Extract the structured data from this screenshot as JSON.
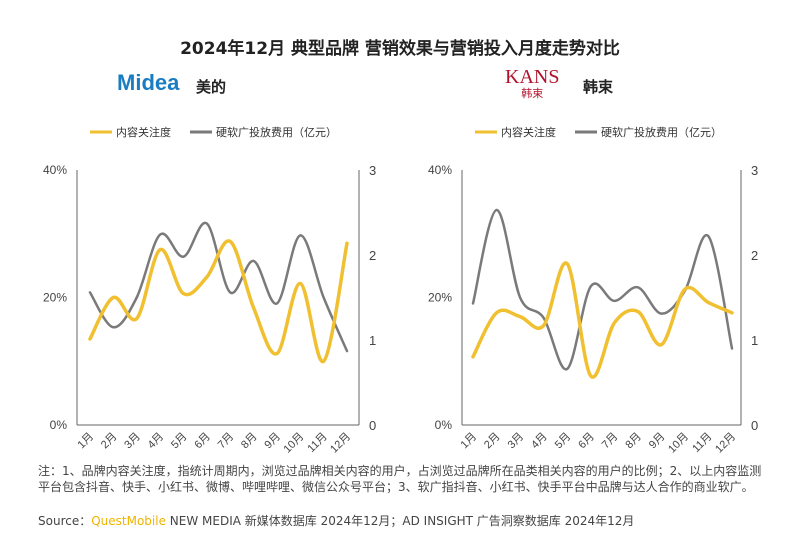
{
  "title": "2024年12月 典型品牌 营销效果与营销投入月度走势对比",
  "colors": {
    "attention": "#f0c030",
    "spend": "#7a7a7a",
    "midea": "#1a7dc2",
    "kans": "#b2122a"
  },
  "chart_data": [
    {
      "type": "line",
      "brand": "美的",
      "logo": "Midea",
      "categories": [
        "1月",
        "2月",
        "3月",
        "4月",
        "5月",
        "6月",
        "7月",
        "8月",
        "9月",
        "10月",
        "11月",
        "12月"
      ],
      "y_left": {
        "ticks": [
          "0%",
          "20%",
          "40%"
        ],
        "range": [
          0,
          40
        ]
      },
      "y_right": {
        "ticks": [
          "0",
          "1",
          "2",
          "3"
        ],
        "range": [
          0,
          3
        ]
      },
      "legend": [
        "内容关注度",
        "硬软广投放费用（亿元）"
      ],
      "series": [
        {
          "name": "内容关注度",
          "axis": "left",
          "values": [
            13.5,
            20,
            16.7,
            27.5,
            20.6,
            23.2,
            28.8,
            18.4,
            11.2,
            22.2,
            10,
            28.5
          ]
        },
        {
          "name": "硬软广投放费用（亿元）",
          "axis": "right",
          "values": [
            1.56,
            1.15,
            1.5,
            2.24,
            1.98,
            2.37,
            1.56,
            1.93,
            1.43,
            2.23,
            1.5,
            0.87
          ]
        }
      ]
    },
    {
      "type": "line",
      "brand": "韩束",
      "logo": "KANS",
      "logo_sub": "韩束",
      "categories": [
        "1月",
        "2月",
        "3月",
        "4月",
        "5月",
        "6月",
        "7月",
        "8月",
        "9月",
        "10月",
        "11月",
        "12月"
      ],
      "y_left": {
        "ticks": [
          "0%",
          "20%",
          "40%"
        ],
        "range": [
          0,
          40
        ]
      },
      "y_right": {
        "ticks": [
          "0",
          "1",
          "2",
          "3"
        ],
        "range": [
          0,
          3
        ]
      },
      "legend": [
        "内容关注度",
        "硬软广投放费用（亿元）"
      ],
      "series": [
        {
          "name": "内容关注度",
          "axis": "left",
          "values": [
            10.7,
            17.6,
            17,
            15.6,
            25.3,
            7.7,
            16,
            17.8,
            12.6,
            21.3,
            19.2,
            17.6
          ]
        },
        {
          "name": "硬软广投放费用（亿元）",
          "axis": "right",
          "values": [
            1.43,
            2.53,
            1.5,
            1.26,
            0.66,
            1.63,
            1.46,
            1.62,
            1.31,
            1.58,
            2.22,
            0.9
          ]
        }
      ]
    }
  ],
  "note": "注：1、品牌内容关注度，指统计周期内，浏览过品牌相关内容的用户，占浏览过品牌所在品类相关内容的用户的比例；2、以上内容监测平台包含抖音、快手、小红书、微博、哔哩哔哩、微信公众号平台；3、软广指抖音、小红书、快手平台中品牌与达人合作的商业软广。",
  "source": {
    "label": "Source：",
    "brand": "QuestMobile",
    "text": " NEW MEDIA 新媒体数据库 2024年12月；AD INSIGHT 广告洞察数据库 2024年12月"
  }
}
